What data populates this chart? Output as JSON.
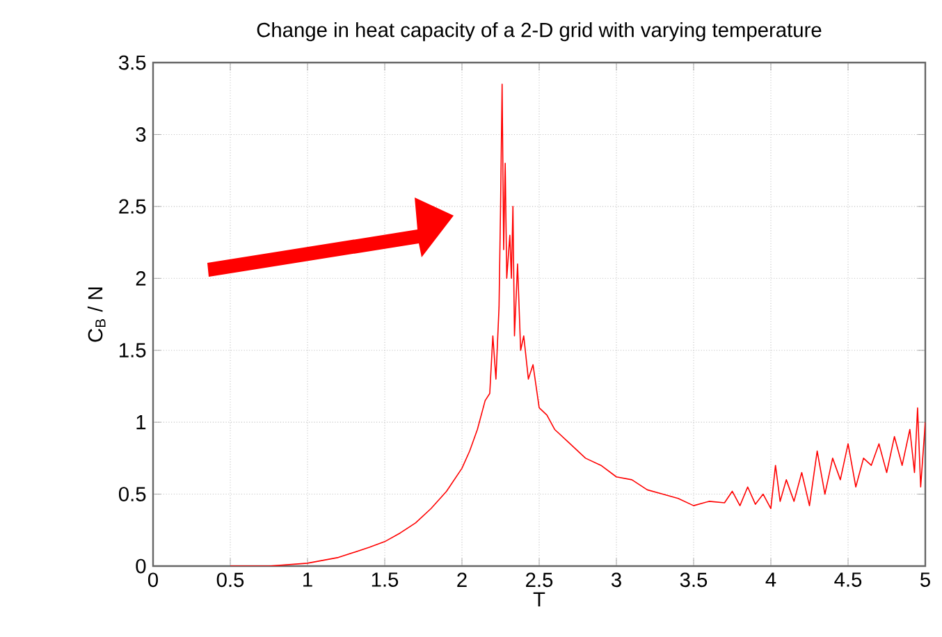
{
  "chart_data": {
    "type": "line",
    "title": "Change in heat capacity of a 2-D grid with varying temperature",
    "xlabel": "T",
    "ylabel": "C$_{B}$ / N",
    "xlim": [
      0,
      5
    ],
    "ylim": [
      0,
      3.5
    ],
    "xticks": [
      0,
      0.5,
      1,
      1.5,
      2,
      2.5,
      3,
      3.5,
      4,
      4.5,
      5
    ],
    "yticks": [
      0,
      0.5,
      1,
      1.5,
      2,
      2.5,
      3,
      3.5
    ],
    "grid": true,
    "series": [
      {
        "color": "#ff0000",
        "x": [
          0.5,
          0.75,
          1.0,
          1.2,
          1.4,
          1.5,
          1.6,
          1.7,
          1.8,
          1.9,
          2.0,
          2.05,
          2.1,
          2.15,
          2.18,
          2.2,
          2.22,
          2.24,
          2.25,
          2.26,
          2.27,
          2.28,
          2.29,
          2.31,
          2.32,
          2.33,
          2.34,
          2.36,
          2.38,
          2.4,
          2.43,
          2.46,
          2.5,
          2.55,
          2.6,
          2.7,
          2.8,
          2.9,
          3.0,
          3.1,
          3.2,
          3.3,
          3.4,
          3.5,
          3.6,
          3.7,
          3.75,
          3.8,
          3.85,
          3.9,
          3.95,
          4.0,
          4.03,
          4.06,
          4.1,
          4.15,
          4.2,
          4.25,
          4.3,
          4.35,
          4.4,
          4.45,
          4.5,
          4.55,
          4.6,
          4.65,
          4.7,
          4.75,
          4.8,
          4.85,
          4.9,
          4.93,
          4.95,
          4.97,
          5.0
        ],
        "values": [
          0.0,
          0.0,
          0.02,
          0.06,
          0.13,
          0.17,
          0.23,
          0.3,
          0.4,
          0.52,
          0.68,
          0.8,
          0.95,
          1.15,
          1.2,
          1.6,
          1.3,
          1.8,
          2.5,
          3.35,
          2.2,
          2.8,
          2.0,
          2.3,
          2.0,
          2.5,
          1.6,
          2.1,
          1.5,
          1.6,
          1.3,
          1.4,
          1.1,
          1.05,
          0.95,
          0.85,
          0.75,
          0.7,
          0.62,
          0.6,
          0.53,
          0.5,
          0.47,
          0.42,
          0.45,
          0.44,
          0.52,
          0.42,
          0.55,
          0.43,
          0.5,
          0.4,
          0.7,
          0.45,
          0.6,
          0.45,
          0.65,
          0.42,
          0.8,
          0.5,
          0.75,
          0.6,
          0.85,
          0.55,
          0.75,
          0.7,
          0.85,
          0.65,
          0.9,
          0.7,
          0.95,
          0.65,
          1.1,
          0.55,
          1.0
        ]
      }
    ]
  }
}
